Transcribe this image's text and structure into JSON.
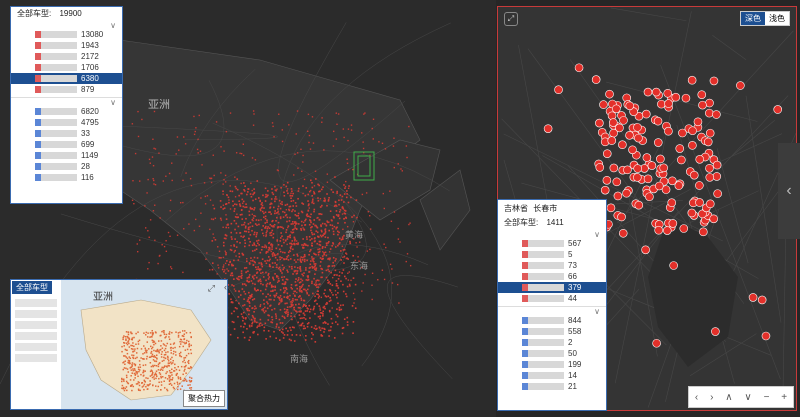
{
  "main_map": {
    "labels": {
      "asia": "亚洲",
      "huanghai": "黄海",
      "donghai": "东海",
      "nanhai": "南海"
    }
  },
  "filter_panel": {
    "header_label": "全部车型:",
    "header_total": "19900",
    "group1_values": [
      "13080",
      "1943",
      "2172",
      "1706",
      "6380",
      "879"
    ],
    "group2_values": [
      "6820",
      "4795",
      "33",
      "699",
      "1149",
      "28",
      "116"
    ],
    "selected_index": 4,
    "colors": {
      "red": "#e05a5a",
      "blue": "#5b86d6",
      "selected": "#1d4f91"
    }
  },
  "inset": {
    "tag": "全部车型",
    "region_label": "亚洲",
    "heat_button": "聚合热力"
  },
  "city_panel": {
    "province": "吉林省",
    "city": "长春市",
    "header_label": "全部车型:",
    "header_total": "1411",
    "group1_values": [
      "567",
      "5",
      "73",
      "66",
      "379",
      "44"
    ],
    "group2_values": [
      "844",
      "558",
      "2",
      "50",
      "199",
      "14",
      "21"
    ],
    "selected_index": 4
  },
  "right_map": {
    "toggle_dark": "深色",
    "toggle_light": "浅色"
  },
  "nav": {
    "prev": "‹",
    "next": "›",
    "up": "∧",
    "down": "∨",
    "zoom_out": "−",
    "zoom_in": "+"
  }
}
